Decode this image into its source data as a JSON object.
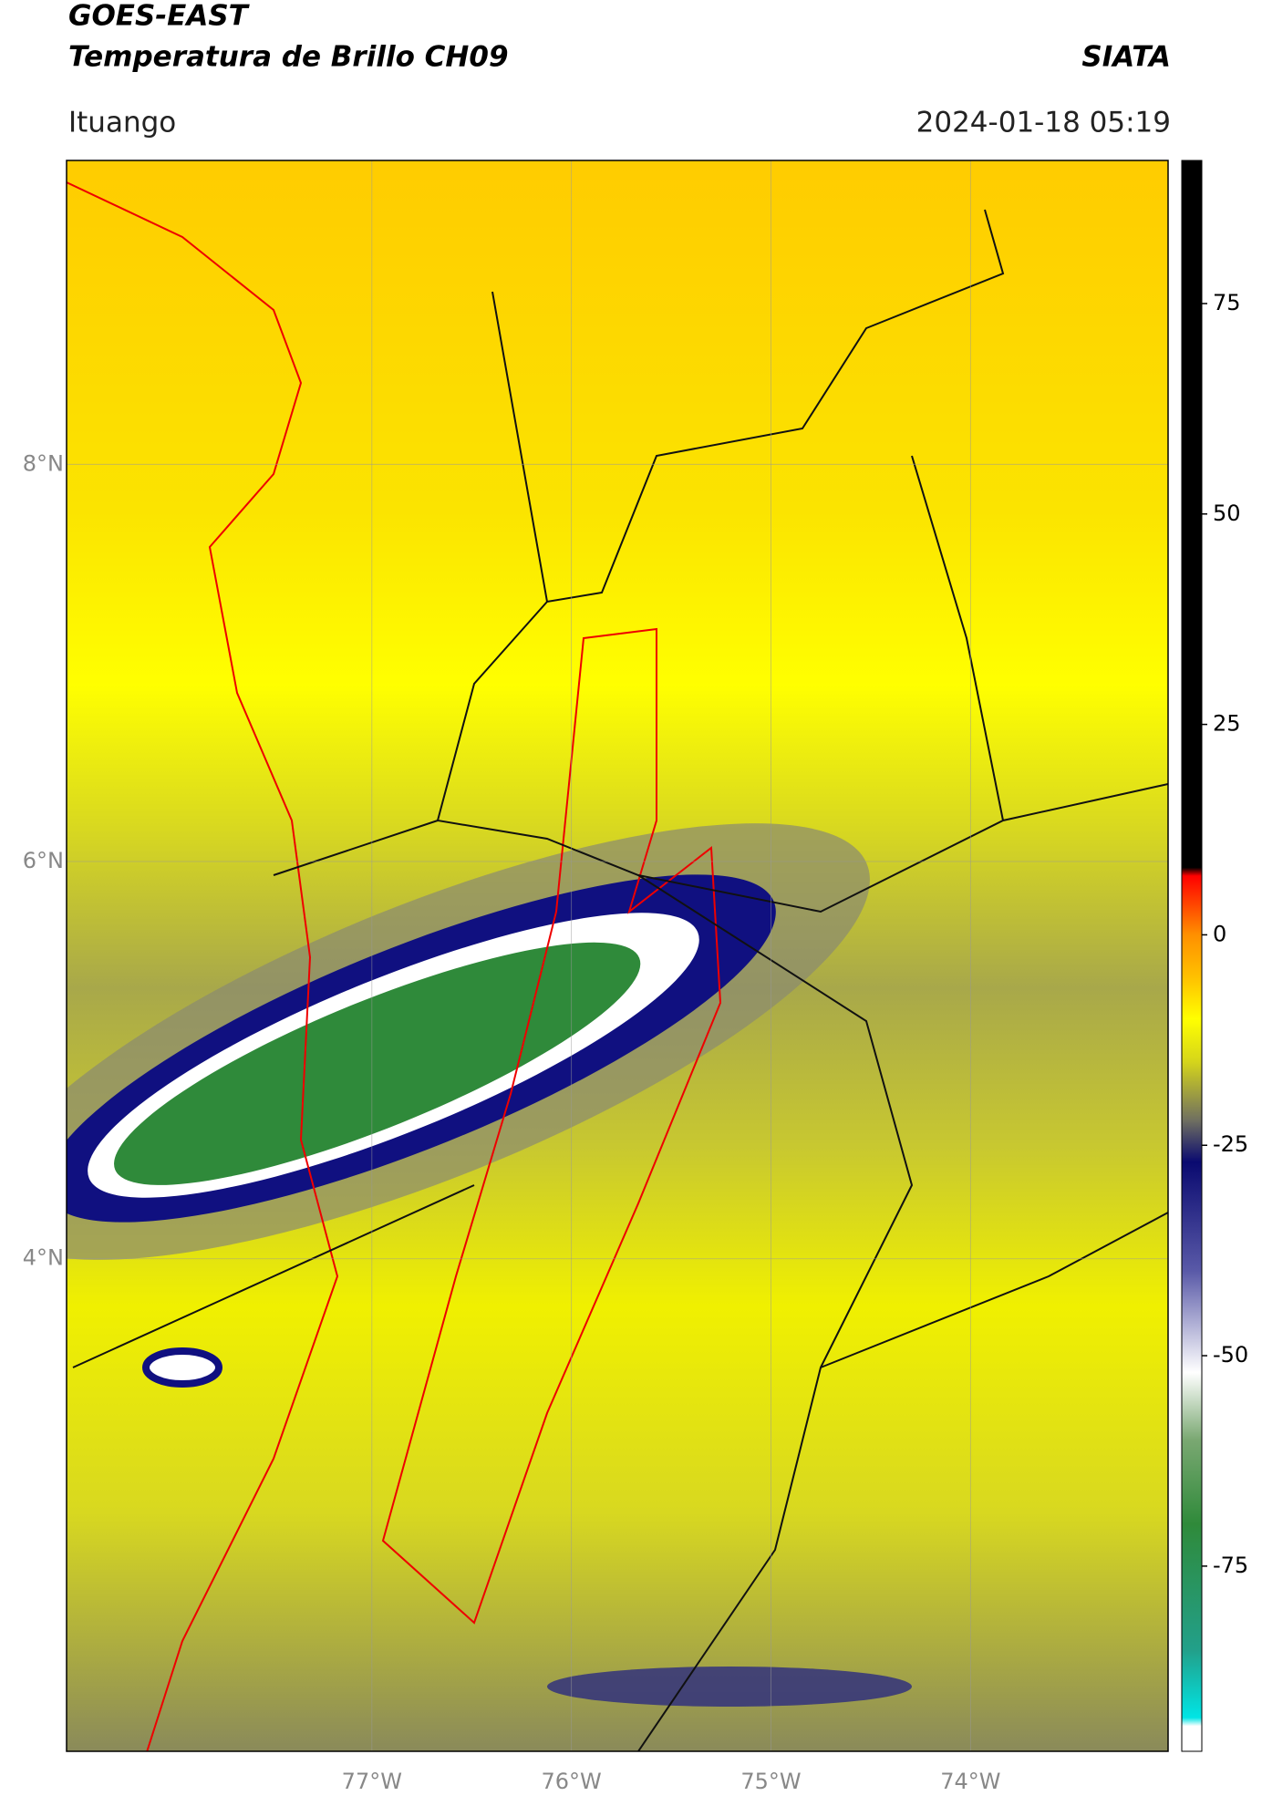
{
  "header": {
    "title_line1": "GOES-EAST",
    "title_line2": "Temperatura de Brillo CH09",
    "brand": "SIATA",
    "region": "Ituango",
    "datetime": "2024-01-18 05:19"
  },
  "map": {
    "xlim": [
      -78.53,
      -73.01
    ],
    "ylim": [
      1.52,
      9.53
    ],
    "xticks": [
      {
        "value": -77,
        "label": "77°W"
      },
      {
        "value": -76,
        "label": "76°W"
      },
      {
        "value": -75,
        "label": "75°W"
      },
      {
        "value": -74,
        "label": "74°W"
      }
    ],
    "yticks": [
      {
        "value": 4,
        "label": "4°N"
      },
      {
        "value": 6,
        "label": "6°N"
      },
      {
        "value": 8,
        "label": "8°N"
      }
    ]
  },
  "colorbar": {
    "lim": [
      -97,
      92
    ],
    "ticks": [
      -75,
      -50,
      -25,
      0,
      25,
      50,
      75
    ],
    "colormap": [
      {
        "value": -97,
        "color": "#ffffff"
      },
      {
        "value": -94,
        "color": "#ffffff"
      },
      {
        "value": -93,
        "color": "#00e5e5"
      },
      {
        "value": -85,
        "color": "#22a08a"
      },
      {
        "value": -70,
        "color": "#2f8a3a"
      },
      {
        "value": -60,
        "color": "#7aa872"
      },
      {
        "value": -52,
        "color": "#ffffff"
      },
      {
        "value": -40,
        "color": "#5a5aa8"
      },
      {
        "value": -27,
        "color": "#0a0a70"
      },
      {
        "value": -22,
        "color": "#707060"
      },
      {
        "value": -15,
        "color": "#d6d61a"
      },
      {
        "value": -10,
        "color": "#ffff00"
      },
      {
        "value": -5,
        "color": "#ffc000"
      },
      {
        "value": 0,
        "color": "#ff9000"
      },
      {
        "value": 7,
        "color": "#ff0000"
      },
      {
        "value": 8,
        "color": "#000000"
      },
      {
        "value": 92,
        "color": "#000000"
      }
    ]
  }
}
